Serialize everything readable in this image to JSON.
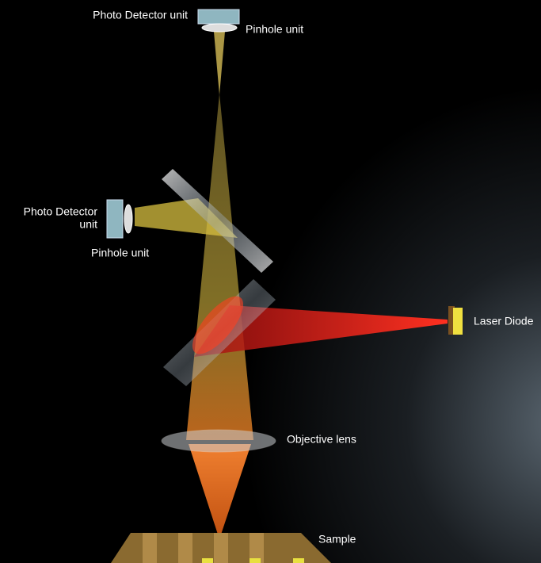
{
  "nodes": [
    {
      "label": "Photo Detector unit"
    },
    {
      "label": "Pinhole unit"
    },
    {
      "lines": [
        "Photo Detector",
        "unit"
      ]
    },
    {
      "label": "Pinhole unit"
    },
    {
      "label": "Laser Diode"
    },
    {
      "label": "Objective lens"
    },
    {
      "label": "Sample"
    }
  ]
}
